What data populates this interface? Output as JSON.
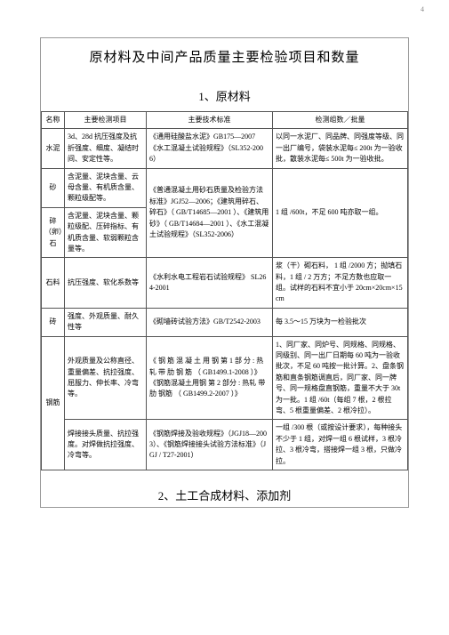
{
  "pageNumber": "4",
  "title": "原材料及中间产品质量主要检验项目和数量",
  "section1_title": "1、原材料",
  "header": {
    "c1": "名称",
    "c2": "主要检测项目",
    "c3": "主要技术标准",
    "c4": "检测组数／批量"
  },
  "rows": {
    "r1": {
      "name": "水泥",
      "inspect": "3d、28d 抗压强度及抗折强度、细度、凝结时间、安定性等。",
      "std": "《通用硅酸盐水泥》GB175—2007《水工混凝土试验规程》（SL352-2006）",
      "qty": "以同一水泥厂、同品牌、同强度等级、同一出厂编号，袋装水泥每≤ 200t 为一验收批，散装水泥每≤ 500t 为一验收批。"
    },
    "r2": {
      "name": "砂",
      "inspect": "含泥量、泥块含量、云母含量、有机质含量、颗粒级配等。",
      "std_top": "《普通混凝土用砂石质量及检验方法标准》JGJ52—2006",
      "std_mid": "；《建筑用碎石、碎石》（ GB/T14685—2001 ）、《建筑用砂》（ GB/T14684—2001 ）、《水工混凝土试验规程》（SL352-2006）",
      "qty_sand": "1 组 /600t，不足   600 吨亦取一组。"
    },
    "r3": {
      "name": "碎（卵）石",
      "inspect": "含泥量、泥块含量、颗粒级配、压碎指标、有机质含量、软弱颗粒含量等。"
    },
    "r4": {
      "name": "石料",
      "inspect": "抗压强度、软化系数等",
      "std": "《水利水电工程岩石试验规程》 SL264-2001",
      "qty": "浆（干）砌石料，  1 组 /2000 方；抛填石料，1 组 / 2 万方；不足方数也应取一组。试样的石料不宜小于 20cm×20cm×15cm"
    },
    "r5": {
      "name": "砖",
      "inspect": "强度、外观质量、耐久性等",
      "std": "《砌墙砖试验方法》GB/T2542-2003",
      "qty": "每 3.5～15 万块为一检验批次"
    },
    "r6": {
      "name": "钢筋",
      "inspect_top": "外观质量及公称直径、重量偏差、抗拉强度、屈服力、伸长率、冷弯等。",
      "std_top": "《 钢 筋 混 凝 土 用 钢    第 1 部 分 : 热轧 带 肋 钢 筋 （ GB1499.1-2008 ）》《钢筋混凝土用钢   第 2 部分 : 热轧 带肋 钢筋 （ GB1499.2-2007 ）》",
      "qty_top": "1、同厂家、同炉号、同规格、同规格、同级别、同一出厂日期每 60 吨为一验收批次，不足 60 吨按一批计算。2、盘条钢筋和直条钢筋调直后，同厂家、同一牌号、同一规格盘直钢筋，重量不大于 30t 为一批。1 组 /60t（每组 7 根，2 根拉弯、5 根重量偏差、2 根冷拉）。",
      "inspect_bot": "焊接接头质量、抗拉强度。对焊做抗拉强度、冷弯等。",
      "std_bot": "《钢筋焊接及验收规程》（JGJ18—2003）、《钢筋焊接接头试验方法标准》（JGJ / T27-2001）",
      "qty_bot": "一组 /300 根（或按设计要求），每种接头不少于 1 组，对焊一组 6 根试样，3 根冷拉、3 根冷弯，搭接焊一组 3 根，只做冷拉。"
    }
  },
  "section2_title": "2、土工合成材料、添加剂"
}
